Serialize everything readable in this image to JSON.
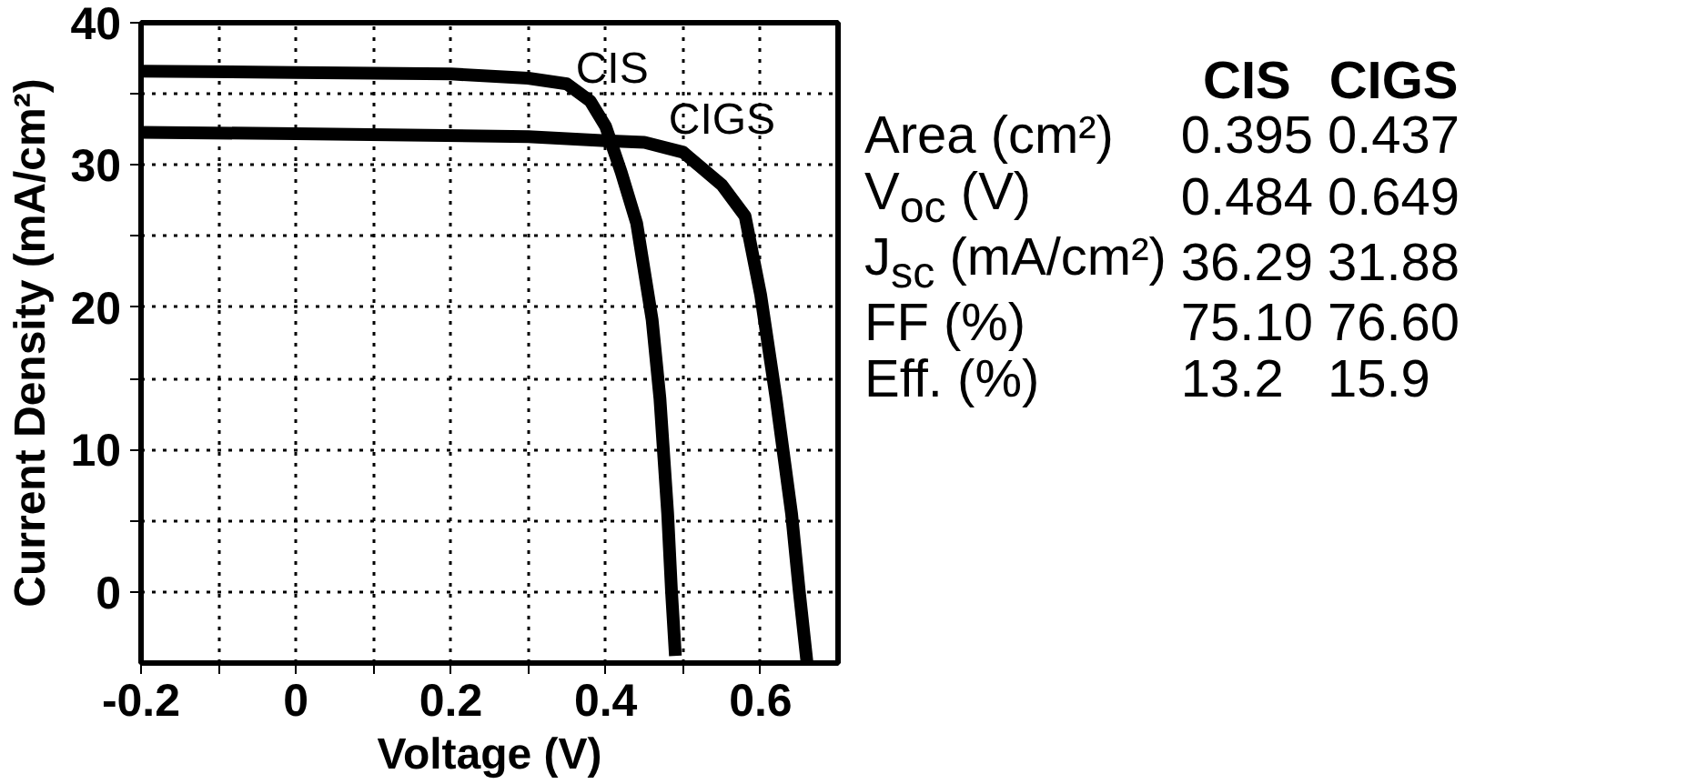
{
  "chart_data": [
    {
      "type": "line",
      "xlabel": "Voltage (V)",
      "ylabel": "Current Density (mA/cm²)",
      "xlim": [
        -0.2,
        0.7
      ],
      "ylim": [
        -5,
        40
      ],
      "xticks": [
        -0.2,
        {
          "value": -0.1,
          "label": null
        },
        0,
        {
          "value": 0.1,
          "label": null
        },
        0.2,
        {
          "value": 0.3,
          "label": null
        },
        0.4,
        {
          "value": 0.5,
          "label": null
        },
        0.6
      ],
      "yticks": [
        0,
        {
          "value": 5,
          "label": null
        },
        10,
        {
          "value": 15,
          "label": null
        },
        20,
        {
          "value": 25,
          "label": null
        },
        30,
        {
          "value": 35,
          "label": null
        },
        40
      ],
      "grid": true,
      "legend": false,
      "marker": "none",
      "line_style": "solid",
      "series": [
        {
          "name": "CIS",
          "color": "#000000",
          "x": [
            -0.2,
            0,
            0.2,
            0.3,
            0.35,
            0.38,
            0.4,
            0.42,
            0.44,
            0.46,
            0.47,
            0.48,
            0.485,
            0.49
          ],
          "values": [
            36.6,
            36.5,
            36.4,
            36.1,
            35.7,
            34.5,
            32.7,
            29.5,
            25.9,
            19.1,
            13.6,
            5.5,
            0,
            -4.5
          ]
        },
        {
          "name": "CIGS",
          "color": "#000000",
          "x": [
            -0.2,
            0,
            0.3,
            0.4,
            0.45,
            0.5,
            0.55,
            0.58,
            0.6,
            0.62,
            0.64,
            0.65,
            0.66
          ],
          "values": [
            32.3,
            32.2,
            32.0,
            31.7,
            31.6,
            30.9,
            28.6,
            26.4,
            20.9,
            13.6,
            5.5,
            0,
            -5
          ]
        }
      ]
    },
    {
      "type": "other",
      "categories": [
        "Area (cm²)",
        "V$_{oc}$ (V)",
        "J$_{sc}$ (mA/cm²)",
        "FF (%)",
        "Eff. (%)"
      ],
      "series": [
        {
          "name": "CIS",
          "values": [
            0.395,
            0.484,
            36.29,
            75.1,
            13.2
          ],
          "value_labels": [
            "0.395",
            "0.484",
            "36.29",
            "75.10",
            "13.2"
          ]
        },
        {
          "name": "CIGS",
          "values": [
            0.437,
            0.649,
            31.88,
            76.6,
            15.9
          ],
          "value_labels": [
            "0.437",
            "0.649",
            "31.88",
            "76.60",
            "15.9"
          ]
        }
      ]
    }
  ]
}
